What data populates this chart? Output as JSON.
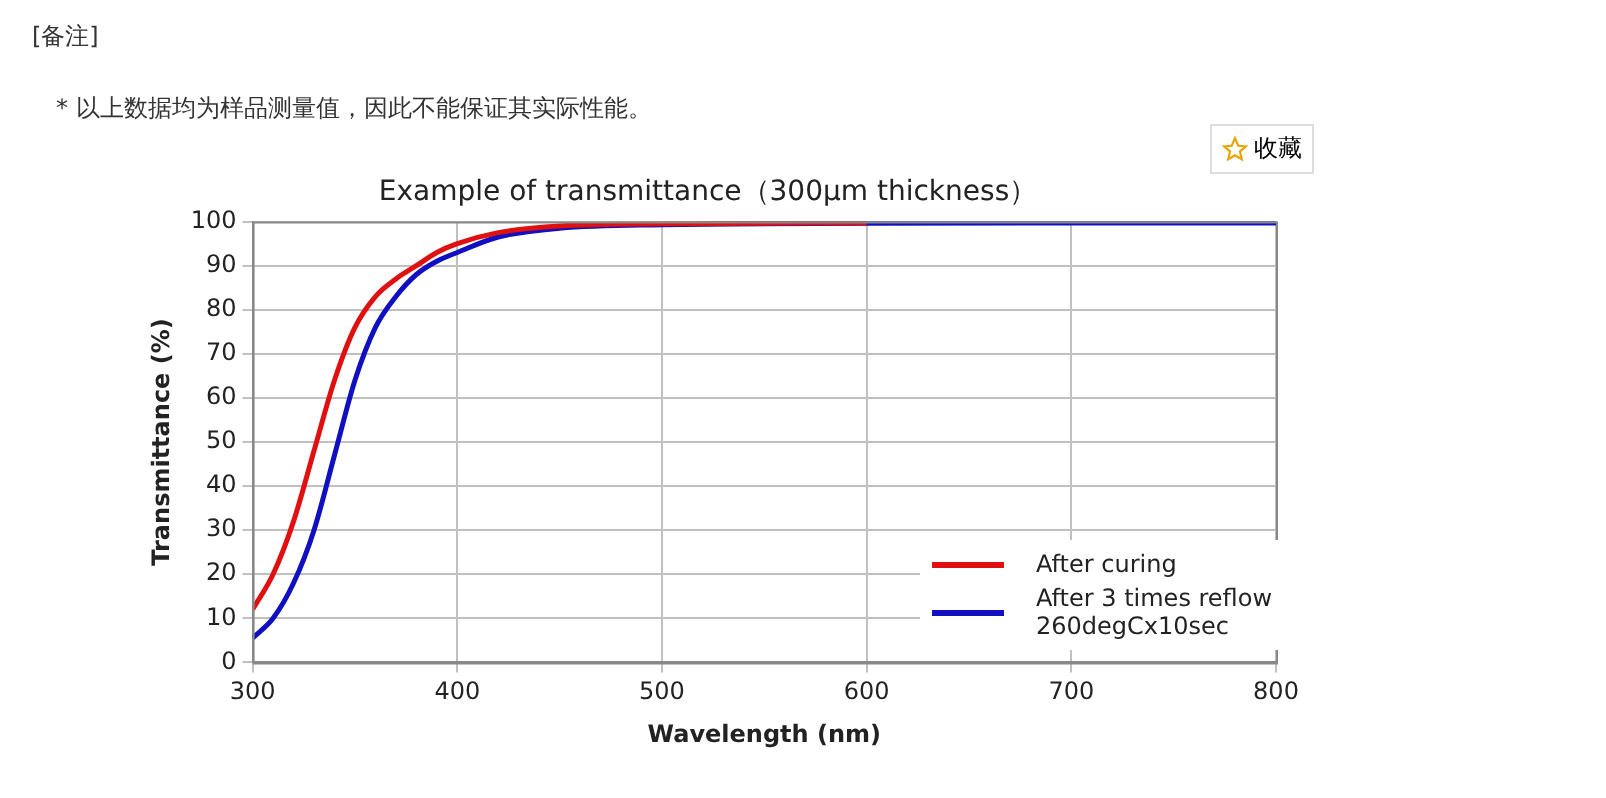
{
  "chart_data": {
    "type": "line",
    "title": "Example of transmittance（300μm thickness）",
    "xlabel": "Wavelength (nm)",
    "ylabel": "Transmittance (%)",
    "annotations": [
      "[备注]",
      "* 以上数据均为样品测量值，因此不能保证其实际性能。",
      "收藏"
    ],
    "x": [
      300,
      310,
      320,
      330,
      340,
      350,
      360,
      370,
      380,
      390,
      400,
      420,
      450,
      500,
      600,
      700,
      800
    ],
    "series": [
      {
        "name": "After curing",
        "color": "#e01010",
        "values": [
          12,
          20,
          32,
          48,
          64,
          76,
          83,
          87,
          90,
          93,
          95,
          97.5,
          99,
          99.5,
          99.7,
          null,
          null
        ]
      },
      {
        "name": "After 3 times reflow\n260degCx10sec",
        "color": "#1010c0",
        "values": [
          5.5,
          10,
          18,
          30,
          47,
          64,
          76,
          83,
          88,
          91,
          93,
          96.5,
          98.5,
          99.3,
          99.6,
          99.7,
          99.7
        ]
      }
    ],
    "xlim": [
      300,
      800
    ],
    "xticks": [
      300,
      400,
      500,
      600,
      700,
      800
    ],
    "ylim": [
      0,
      100
    ],
    "yticks": [
      0,
      10,
      20,
      30,
      40,
      50,
      60,
      70,
      80,
      90,
      100
    ],
    "grid": true,
    "legend": "bottom right",
    "marker": "none",
    "line_style": "solid"
  }
}
